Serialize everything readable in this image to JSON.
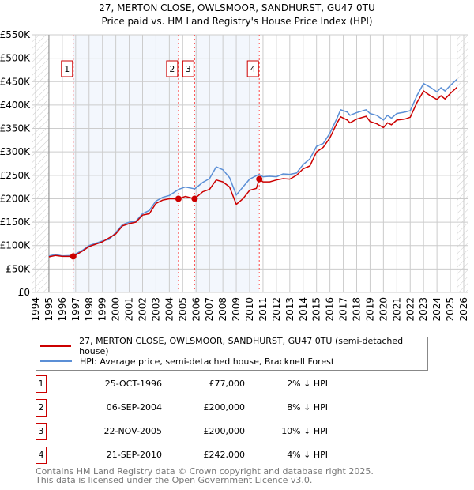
{
  "title_line1": "27, MERTON CLOSE, OWLSMOOR, SANDHURST, GU47 0TU",
  "title_line2": "Price paid vs. HM Land Registry's House Price Index (HPI)",
  "chart_data": {
    "type": "line",
    "title": "27, MERTON CLOSE, OWLSMOOR, SANDHURST, GU47 0TU - Price paid vs. HM Land Registry's House Price Index (HPI)",
    "xlim": [
      1994,
      2026
    ],
    "ylim": [
      0,
      550000
    ],
    "x_ticks": [
      "1994",
      "1995",
      "1996",
      "1997",
      "1998",
      "1999",
      "2000",
      "2001",
      "2002",
      "2003",
      "2004",
      "2005",
      "2006",
      "2007",
      "2008",
      "2009",
      "2010",
      "2011",
      "2012",
      "2013",
      "2014",
      "2015",
      "2016",
      "2017",
      "2018",
      "2019",
      "2020",
      "2021",
      "2022",
      "2023",
      "2024",
      "2025",
      "2026"
    ],
    "y_ticks": [
      {
        "v": 0,
        "label": "£0"
      },
      {
        "v": 50000,
        "label": "£50K"
      },
      {
        "v": 100000,
        "label": "£100K"
      },
      {
        "v": 150000,
        "label": "£150K"
      },
      {
        "v": 200000,
        "label": "£200K"
      },
      {
        "v": 250000,
        "label": "£250K"
      },
      {
        "v": 300000,
        "label": "£300K"
      },
      {
        "v": 350000,
        "label": "£350K"
      },
      {
        "v": 400000,
        "label": "£400K"
      },
      {
        "v": 450000,
        "label": "£450K"
      },
      {
        "v": 500000,
        "label": "£500K"
      },
      {
        "v": 550000,
        "label": "£550K"
      }
    ],
    "grid": true,
    "series": [
      {
        "name": "27, MERTON CLOSE, OWLSMOOR, SANDHURST, GU47 0TU (semi-detached house)",
        "color": "#cc0000",
        "x": [
          1995,
          1995.5,
          1996,
          1996.82,
          1997.5,
          1998,
          1999,
          2000,
          2000.5,
          2001,
          2001.5,
          2002,
          2002.5,
          2003,
          2003.5,
          2004,
          2004.68,
          2005.2,
          2005.89,
          2006.5,
          2007,
          2007.5,
          2008,
          2008.5,
          2009,
          2009.5,
          2010,
          2010.5,
          2010.72,
          2011,
          2011.5,
          2012,
          2012.5,
          2013,
          2013.5,
          2014,
          2014.5,
          2015,
          2015.5,
          2016,
          2016.5,
          2016.8,
          2017.3,
          2017.5,
          2018,
          2018.7,
          2019,
          2019.5,
          2020,
          2020.3,
          2020.6,
          2021,
          2021.6,
          2022,
          2022.5,
          2023,
          2023.5,
          2024,
          2024.3,
          2024.6,
          2025,
          2025.5
        ],
        "y": [
          76000,
          79000,
          77000,
          77000,
          88000,
          98000,
          108000,
          125000,
          142000,
          147000,
          150000,
          165000,
          168000,
          190000,
          197000,
          200000,
          200000,
          205000,
          200000,
          215000,
          220000,
          240000,
          236000,
          225000,
          188000,
          200000,
          218000,
          222000,
          242000,
          236000,
          236000,
          240000,
          243000,
          242000,
          250000,
          264000,
          270000,
          300000,
          310000,
          330000,
          360000,
          375000,
          368000,
          362000,
          370000,
          376000,
          365000,
          360000,
          352000,
          362000,
          358000,
          368000,
          370000,
          374000,
          405000,
          430000,
          420000,
          412000,
          420000,
          413000,
          425000,
          438000
        ]
      },
      {
        "name": "HPI: Average price, semi-detached house, Bracknell Forest",
        "color": "#5b8fd6",
        "x": [
          1995,
          1995.5,
          1996,
          1996.8,
          1997.5,
          1998,
          1998.5,
          1999,
          1999.5,
          2000,
          2000.5,
          2001,
          2001.5,
          2002,
          2002.5,
          2003,
          2003.5,
          2004,
          2004.7,
          2005.2,
          2005.9,
          2006.5,
          2007,
          2007.5,
          2008,
          2008.5,
          2009,
          2009.5,
          2010,
          2010.7,
          2011,
          2011.5,
          2012,
          2012.5,
          2013,
          2013.5,
          2014,
          2014.5,
          2015,
          2015.5,
          2016,
          2016.5,
          2016.8,
          2017.3,
          2017.5,
          2018,
          2018.7,
          2019,
          2019.5,
          2020,
          2020.3,
          2020.6,
          2021,
          2021.6,
          2022,
          2022.5,
          2023,
          2023.5,
          2024,
          2024.3,
          2024.6,
          2025,
          2025.5
        ],
        "y": [
          78000,
          81000,
          78000,
          79000,
          90000,
          100000,
          105000,
          110000,
          113000,
          128000,
          145000,
          150000,
          152000,
          168000,
          175000,
          195000,
          203000,
          207000,
          220000,
          225000,
          221000,
          235000,
          243000,
          268000,
          262000,
          245000,
          208000,
          225000,
          242000,
          252000,
          247000,
          248000,
          247000,
          253000,
          252000,
          255000,
          273000,
          285000,
          312000,
          318000,
          340000,
          370000,
          390000,
          385000,
          378000,
          384000,
          390000,
          382000,
          378000,
          368000,
          378000,
          372000,
          382000,
          385000,
          388000,
          420000,
          446000,
          438000,
          428000,
          437000,
          430000,
          442000,
          455000
        ]
      }
    ],
    "sales": [
      {
        "n": "1",
        "x": 1996.82,
        "y": 77000
      },
      {
        "n": "2",
        "x": 2004.68,
        "y": 200000
      },
      {
        "n": "3",
        "x": 2005.89,
        "y": 200000
      },
      {
        "n": "4",
        "x": 2010.72,
        "y": 242000
      }
    ],
    "legend_position": "below"
  },
  "legend": {
    "items": [
      {
        "label": "27, MERTON CLOSE, OWLSMOOR, SANDHURST, GU47 0TU (semi-detached house)",
        "color": "#cc0000"
      },
      {
        "label": "HPI: Average price, semi-detached house, Bracknell Forest",
        "color": "#5b8fd6"
      }
    ]
  },
  "transactions": [
    {
      "n": "1",
      "date": "25-OCT-1996",
      "price": "£77,000",
      "hpi": "2% ↓ HPI"
    },
    {
      "n": "2",
      "date": "06-SEP-2004",
      "price": "£200,000",
      "hpi": "8% ↓ HPI"
    },
    {
      "n": "3",
      "date": "22-NOV-2005",
      "price": "£200,000",
      "hpi": "10% ↓ HPI"
    },
    {
      "n": "4",
      "date": "21-SEP-2010",
      "price": "£242,000",
      "hpi": "4% ↓ HPI"
    }
  ],
  "footer": {
    "line1": "Contains HM Land Registry data © Crown copyright and database right 2025.",
    "line2": "This data is licensed under the Open Government Licence v3.0."
  }
}
